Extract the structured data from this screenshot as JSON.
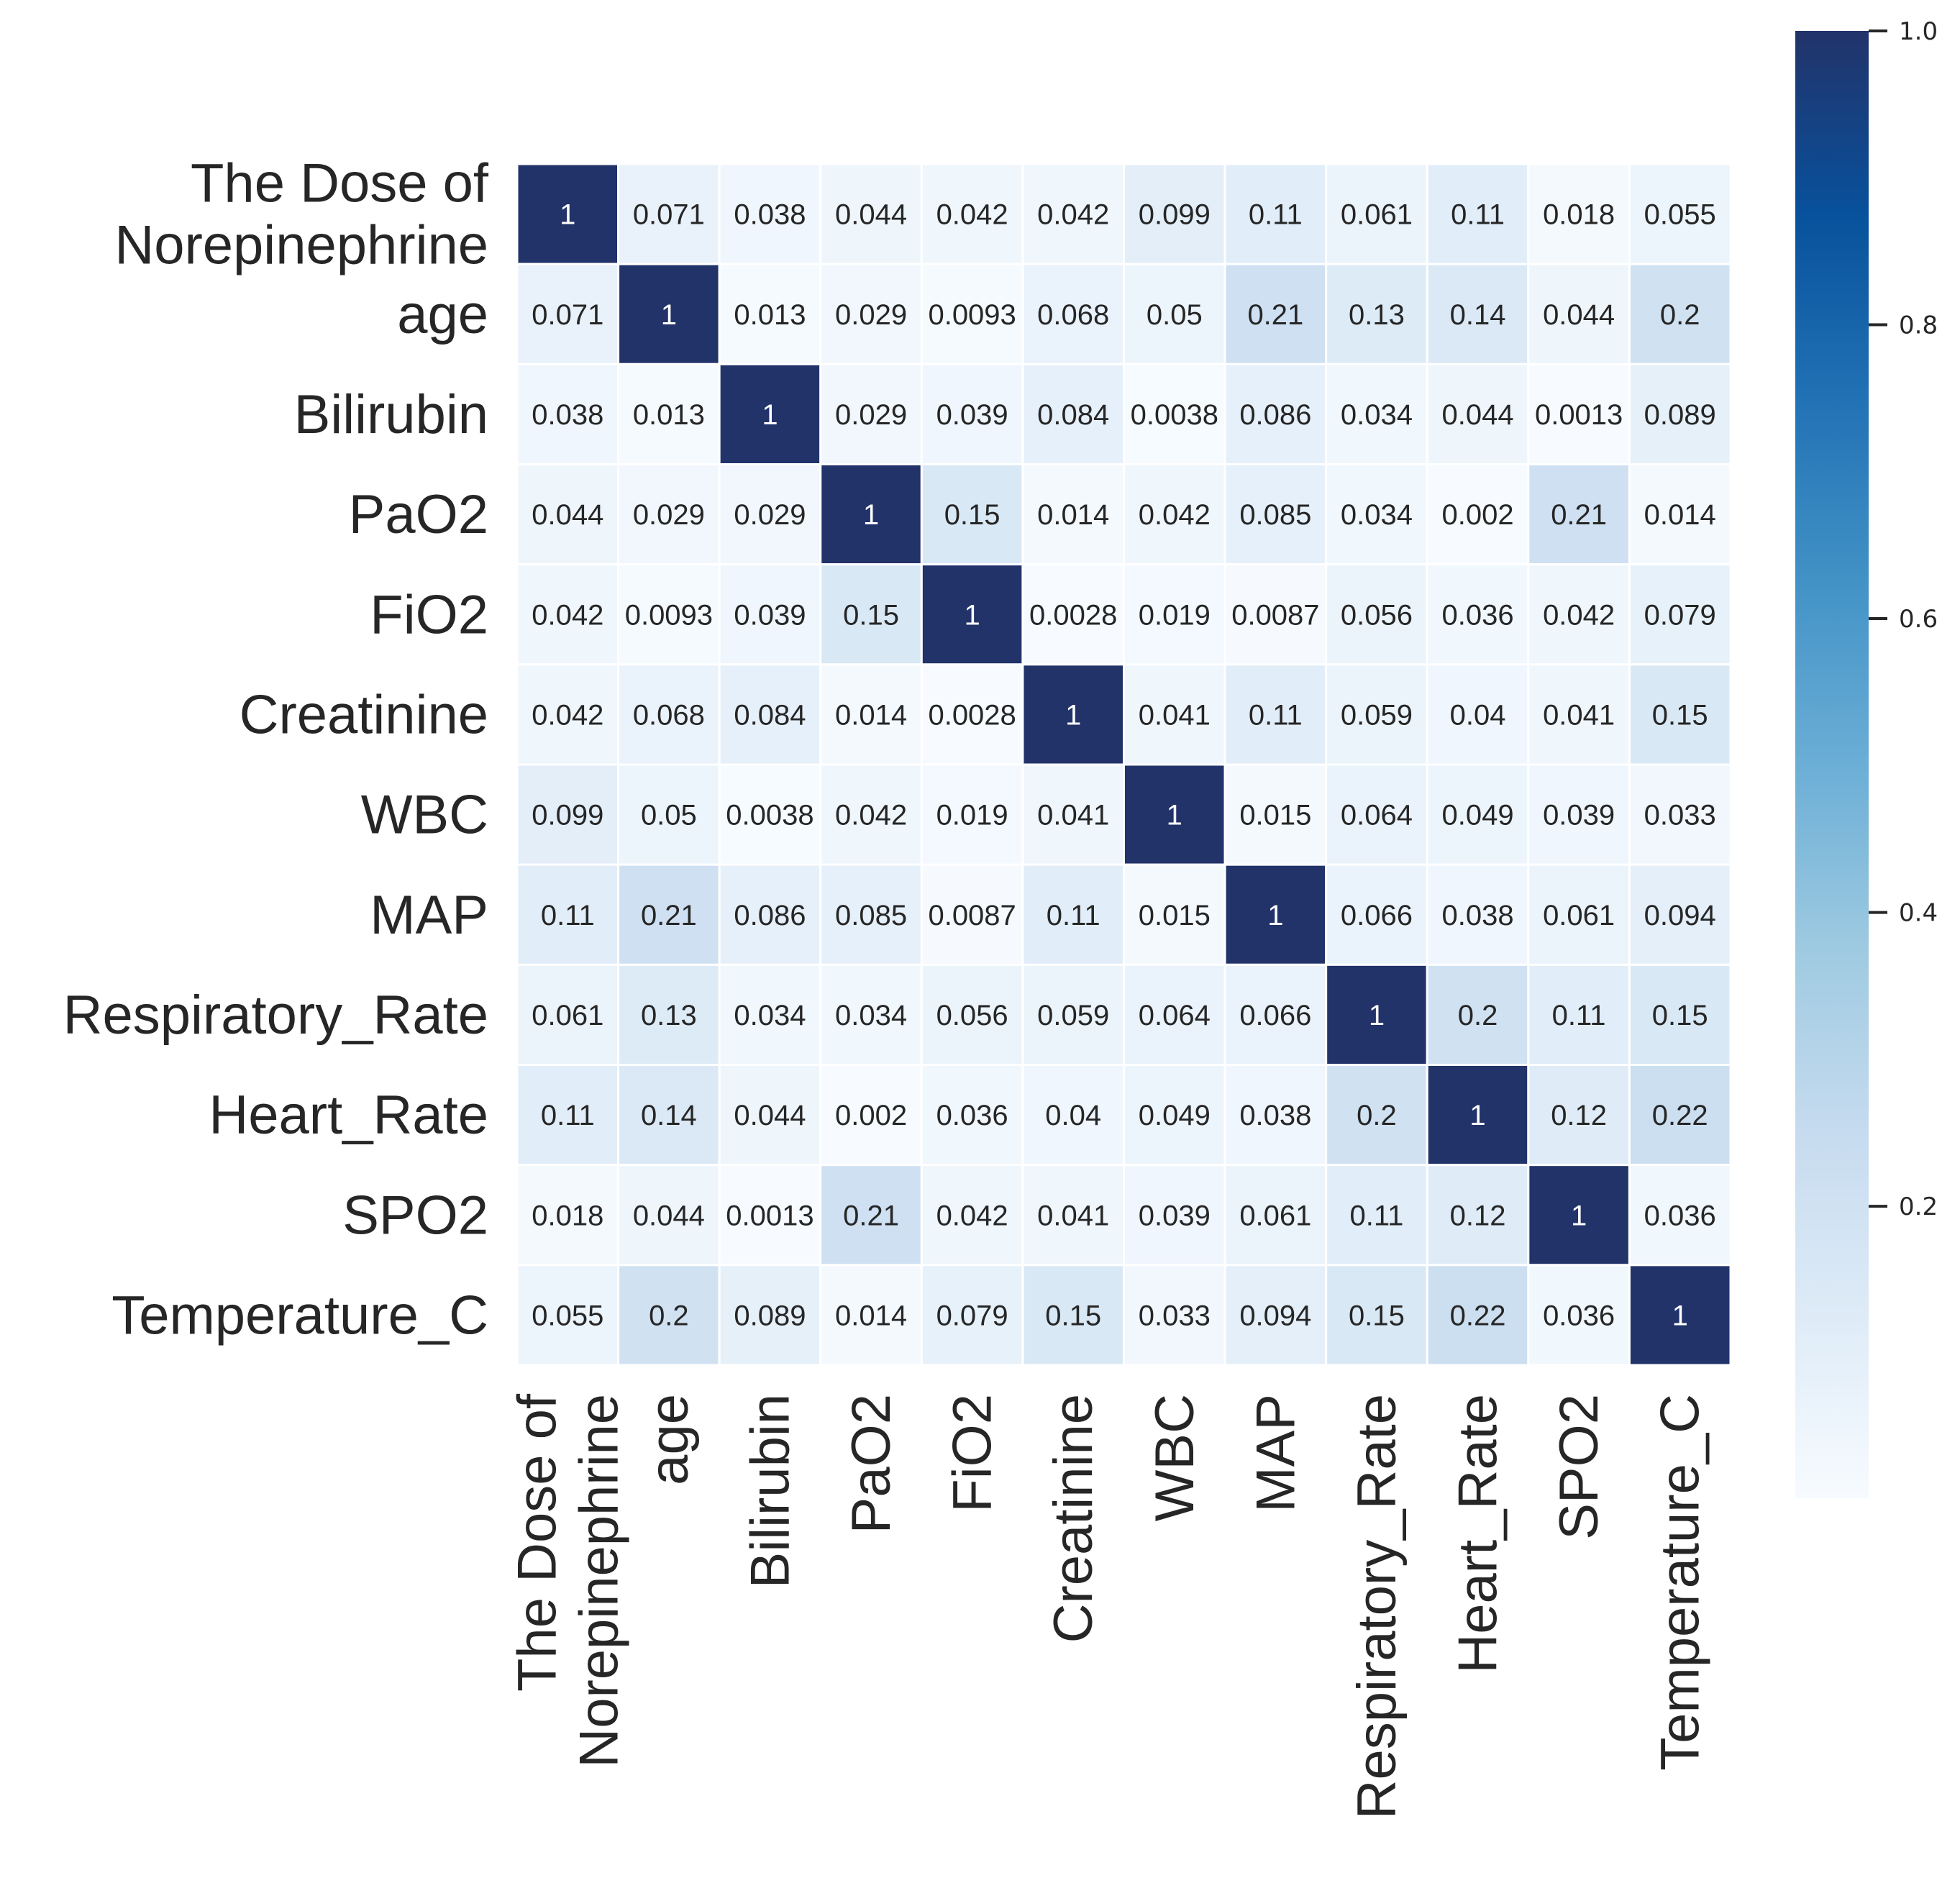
{
  "chart_data": {
    "type": "heatmap",
    "title": "",
    "xlabel": "",
    "ylabel": "",
    "labels": [
      "The Dose of\nNorepinephrine",
      "age",
      "Bilirubin",
      "PaO2",
      "FiO2",
      "Creatinine",
      "WBC",
      "MAP",
      "Respiratory_Rate",
      "Heart_Rate",
      "SPO2",
      "Temperature_C"
    ],
    "matrix": [
      [
        "1",
        "0.071",
        "0.038",
        "0.044",
        "0.042",
        "0.042",
        "0.099",
        "0.11",
        "0.061",
        "0.11",
        "0.018",
        "0.055"
      ],
      [
        "0.071",
        "1",
        "0.013",
        "0.029",
        "0.0093",
        "0.068",
        "0.05",
        "0.21",
        "0.13",
        "0.14",
        "0.044",
        "0.2"
      ],
      [
        "0.038",
        "0.013",
        "1",
        "0.029",
        "0.039",
        "0.084",
        "0.0038",
        "0.086",
        "0.034",
        "0.044",
        "0.0013",
        "0.089"
      ],
      [
        "0.044",
        "0.029",
        "0.029",
        "1",
        "0.15",
        "0.014",
        "0.042",
        "0.085",
        "0.034",
        "0.002",
        "0.21",
        "0.014"
      ],
      [
        "0.042",
        "0.0093",
        "0.039",
        "0.15",
        "1",
        "0.0028",
        "0.019",
        "0.0087",
        "0.056",
        "0.036",
        "0.042",
        "0.079"
      ],
      [
        "0.042",
        "0.068",
        "0.084",
        "0.014",
        "0.0028",
        "1",
        "0.041",
        "0.11",
        "0.059",
        "0.04",
        "0.041",
        "0.15"
      ],
      [
        "0.099",
        "0.05",
        "0.0038",
        "0.042",
        "0.019",
        "0.041",
        "1",
        "0.015",
        "0.064",
        "0.049",
        "0.039",
        "0.033"
      ],
      [
        "0.11",
        "0.21",
        "0.086",
        "0.085",
        "0.0087",
        "0.11",
        "0.015",
        "1",
        "0.066",
        "0.038",
        "0.061",
        "0.094"
      ],
      [
        "0.061",
        "0.13",
        "0.034",
        "0.034",
        "0.056",
        "0.059",
        "0.064",
        "0.066",
        "1",
        "0.2",
        "0.11",
        "0.15"
      ],
      [
        "0.11",
        "0.14",
        "0.044",
        "0.002",
        "0.036",
        "0.04",
        "0.049",
        "0.038",
        "0.2",
        "1",
        "0.12",
        "0.22"
      ],
      [
        "0.018",
        "0.044",
        "0.0013",
        "0.21",
        "0.042",
        "0.041",
        "0.039",
        "0.061",
        "0.11",
        "0.12",
        "1",
        "0.036"
      ],
      [
        "0.055",
        "0.2",
        "0.089",
        "0.014",
        "0.079",
        "0.15",
        "0.033",
        "0.094",
        "0.15",
        "0.22",
        "0.036",
        "1"
      ]
    ],
    "colorbar": {
      "colormap": "Blues",
      "range": [
        0.0013,
        1.0
      ],
      "ticks": [
        0.2,
        0.4,
        0.6,
        0.8,
        1.0
      ],
      "tick_labels": [
        "0.2",
        "0.4",
        "0.6",
        "0.8",
        "1.0"
      ],
      "placement": "right"
    },
    "annotations": true,
    "grid": false
  },
  "colors": {
    "max": "#22336a",
    "text_dark": "#262626",
    "text_light": "#ffffff",
    "cell_border": "#ffffff"
  }
}
